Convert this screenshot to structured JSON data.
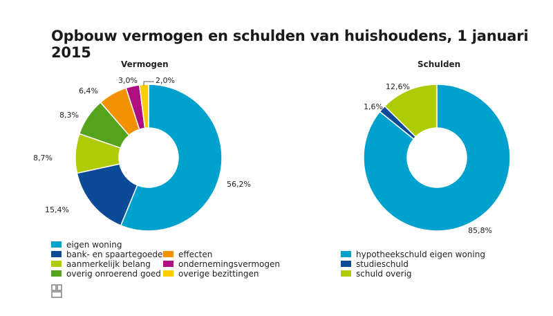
{
  "title": "Opbouw vermogen en schulden van huishoudens, 1 januari 2015",
  "chart_data": [
    {
      "type": "pie",
      "title": "Vermogen",
      "categories": [
        "eigen woning",
        "bank- en spaartegoeden",
        "aanmerkelijk belang",
        "overig onroerend goed",
        "effecten",
        "ondernemingsvermogen",
        "overige bezittingen"
      ],
      "values": [
        56.2,
        15.4,
        8.7,
        8.3,
        6.4,
        3.0,
        2.0
      ],
      "labels": [
        "56,2%",
        "15,4%",
        "8,7%",
        "8,3%",
        "6,4%",
        "3,0%",
        "2,0%"
      ],
      "colors": [
        "#00a1cd",
        "#0b4a97",
        "#afcb06",
        "#53a31d",
        "#f39200",
        "#af0e80",
        "#ffcc00"
      ],
      "legend_position": "bottom",
      "hole": "donut"
    },
    {
      "type": "pie",
      "title": "Schulden",
      "categories": [
        "hypotheekschuld eigen woning",
        "studieschuld",
        "schuld overig"
      ],
      "values": [
        85.8,
        1.6,
        12.6
      ],
      "labels": [
        "85,8%",
        "1,6%",
        "12,6%"
      ],
      "colors": [
        "#00a1cd",
        "#0b4a97",
        "#afcb06"
      ],
      "legend_position": "bottom",
      "hole": "donut"
    }
  ],
  "legend_vermogen": [
    {
      "label": "eigen woning",
      "color": "#00a1cd"
    },
    {
      "label": "bank- en spaartegoeden",
      "color": "#0b4a97"
    },
    {
      "label": "aanmerkelijk belang",
      "color": "#afcb06"
    },
    {
      "label": "overig onroerend goed",
      "color": "#53a31d"
    },
    {
      "label": "effecten",
      "color": "#f39200"
    },
    {
      "label": "ondernemingsvermogen",
      "color": "#af0e80"
    },
    {
      "label": "overige bezittingen",
      "color": "#ffcc00"
    }
  ],
  "legend_schulden": [
    {
      "label": "hypotheekschuld eigen woning",
      "color": "#00a1cd"
    },
    {
      "label": "studieschuld",
      "color": "#0b4a97"
    },
    {
      "label": "schuld overig",
      "color": "#afcb06"
    }
  ],
  "logo_icon": "cbs-logo-icon"
}
